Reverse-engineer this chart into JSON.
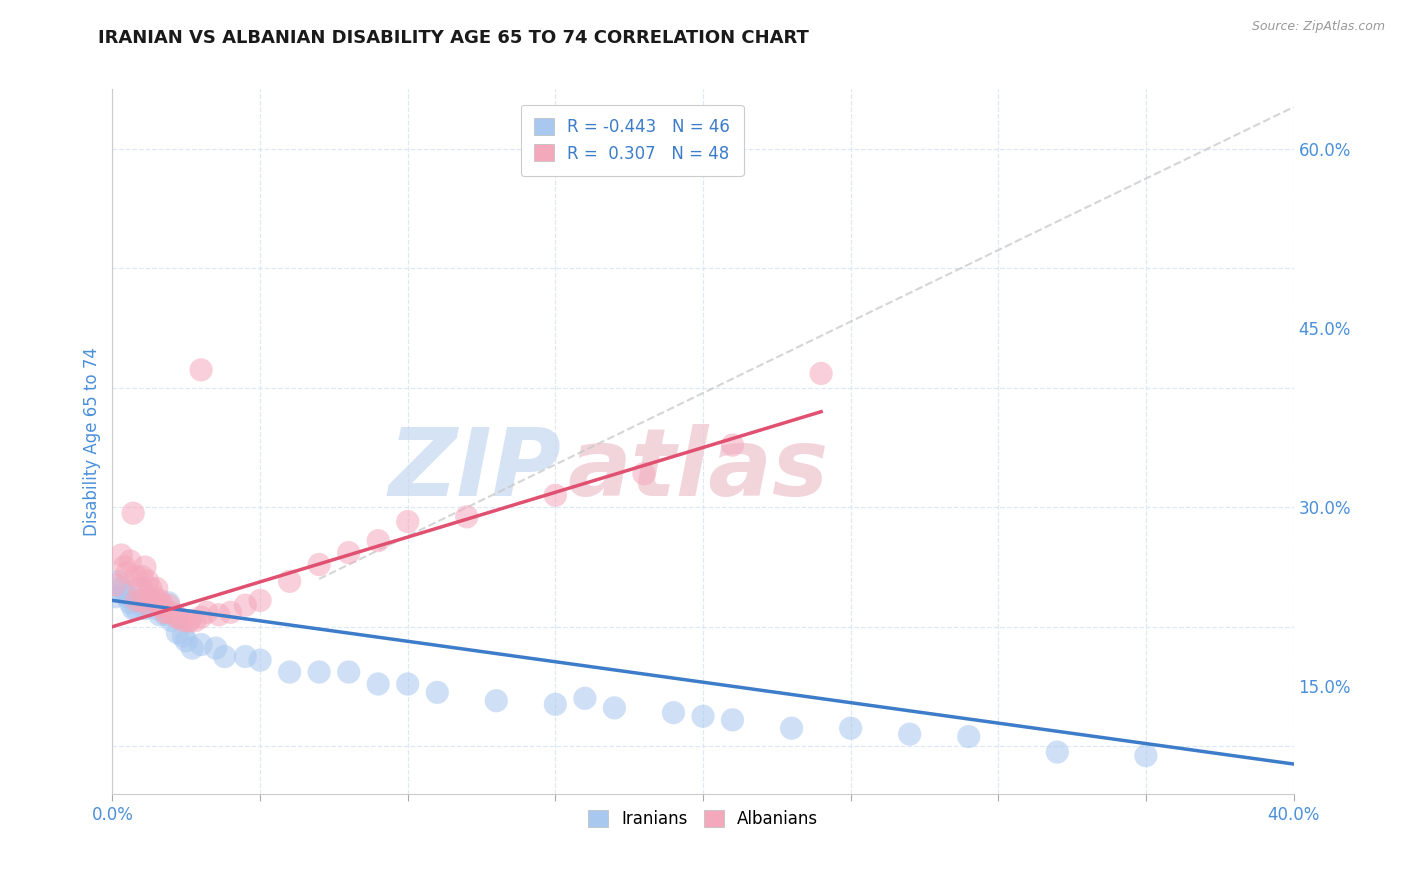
{
  "title": "IRANIAN VS ALBANIAN DISABILITY AGE 65 TO 74 CORRELATION CHART",
  "source": "Source: ZipAtlas.com",
  "ylabel": "Disability Age 65 to 74",
  "xlim": [
    0.0,
    0.4
  ],
  "ylim": [
    0.06,
    0.65
  ],
  "xticks": [
    0.0,
    0.05,
    0.1,
    0.15,
    0.2,
    0.25,
    0.3,
    0.35,
    0.4
  ],
  "xticklabels": [
    "0.0%",
    "",
    "",
    "",
    "",
    "",
    "",
    "",
    "40.0%"
  ],
  "yticks_right": [
    0.15,
    0.3,
    0.45,
    0.6
  ],
  "yticklabels_right": [
    "15.0%",
    "30.0%",
    "45.0%",
    "60.0%"
  ],
  "R_iranian": -0.443,
  "N_iranian": 46,
  "R_albanian": 0.307,
  "N_albanian": 48,
  "color_iranian": "#a8c8f0",
  "color_albanian": "#f4a8bc",
  "color_iranian_line": "#3d7cc9",
  "color_albanian_line": "#e05070",
  "color_diag_line": "#c8c8c8",
  "legend_text_color": "#3d7cc9",
  "background_color": "#ffffff",
  "grid_color": "#dce8f5",
  "title_color": "#1a1a1a",
  "axis_tick_color": "#4a90d9",
  "watermark_zip_color": "#c4d8f0",
  "watermark_atlas_color": "#ecc4cc",
  "iranian_x": [
    0.001,
    0.002,
    0.003,
    0.004,
    0.005,
    0.006,
    0.007,
    0.008,
    0.009,
    0.01,
    0.011,
    0.012,
    0.013,
    0.015,
    0.016,
    0.018,
    0.019,
    0.02,
    0.022,
    0.024,
    0.025,
    0.027,
    0.03,
    0.035,
    0.038,
    0.045,
    0.05,
    0.06,
    0.07,
    0.08,
    0.09,
    0.1,
    0.11,
    0.13,
    0.15,
    0.17,
    0.19,
    0.21,
    0.25,
    0.29,
    0.32,
    0.35,
    0.16,
    0.2,
    0.23,
    0.27
  ],
  "iranian_y": [
    0.225,
    0.238,
    0.232,
    0.228,
    0.225,
    0.22,
    0.215,
    0.215,
    0.222,
    0.232,
    0.215,
    0.218,
    0.222,
    0.215,
    0.21,
    0.21,
    0.22,
    0.205,
    0.195,
    0.192,
    0.188,
    0.182,
    0.185,
    0.182,
    0.175,
    0.175,
    0.172,
    0.162,
    0.162,
    0.162,
    0.152,
    0.152,
    0.145,
    0.138,
    0.135,
    0.132,
    0.128,
    0.122,
    0.115,
    0.108,
    0.095,
    0.092,
    0.14,
    0.125,
    0.115,
    0.11
  ],
  "albanian_x": [
    0.001,
    0.003,
    0.004,
    0.005,
    0.006,
    0.007,
    0.008,
    0.009,
    0.01,
    0.011,
    0.012,
    0.013,
    0.014,
    0.015,
    0.016,
    0.017,
    0.018,
    0.019,
    0.02,
    0.022,
    0.024,
    0.026,
    0.028,
    0.03,
    0.032,
    0.036,
    0.04,
    0.045,
    0.05,
    0.06,
    0.07,
    0.08,
    0.09,
    0.1,
    0.12,
    0.15,
    0.18,
    0.21,
    0.24,
    0.008,
    0.01,
    0.012,
    0.014,
    0.016,
    0.018,
    0.022,
    0.026,
    0.03
  ],
  "albanian_y": [
    0.235,
    0.26,
    0.25,
    0.245,
    0.255,
    0.295,
    0.242,
    0.232,
    0.242,
    0.25,
    0.238,
    0.232,
    0.225,
    0.232,
    0.222,
    0.218,
    0.212,
    0.218,
    0.212,
    0.208,
    0.205,
    0.205,
    0.205,
    0.208,
    0.212,
    0.21,
    0.212,
    0.218,
    0.222,
    0.238,
    0.252,
    0.262,
    0.272,
    0.288,
    0.292,
    0.31,
    0.328,
    0.352,
    0.412,
    0.222,
    0.222,
    0.218,
    0.222,
    0.218,
    0.212,
    0.208,
    0.205,
    0.415
  ],
  "iranian_line_x0": 0.0,
  "iranian_line_y0": 0.222,
  "iranian_line_x1": 0.4,
  "iranian_line_y1": 0.085,
  "albanian_line_x0": 0.0,
  "albanian_line_y0": 0.2,
  "albanian_line_x1": 0.24,
  "albanian_line_y1": 0.38
}
